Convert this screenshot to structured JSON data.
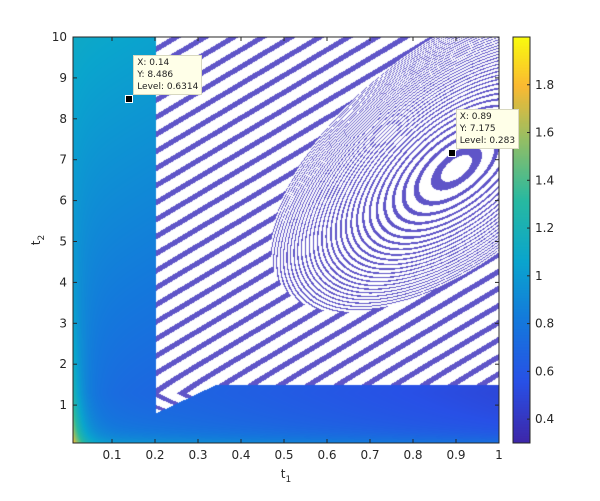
{
  "chart_data": {
    "type": "contour",
    "xlabel": "t",
    "xlabel_sub": "1",
    "ylabel": "t",
    "ylabel_sub": "2",
    "xlim": [
      0.01,
      1
    ],
    "ylim": [
      0.07,
      10
    ],
    "xticks": [
      "0.1",
      "0.2",
      "0.3",
      "0.4",
      "0.5",
      "0.6",
      "0.7",
      "0.8",
      "0.9",
      "1"
    ],
    "yticks": [
      "1",
      "2",
      "3",
      "4",
      "5",
      "6",
      "7",
      "8",
      "9",
      "10"
    ],
    "colorbar": {
      "clim": [
        0.3,
        2.0
      ],
      "ticks": [
        "0.4",
        "0.6",
        "0.8",
        "1",
        "1.2",
        "1.4",
        "1.6",
        "1.8"
      ],
      "colormap": "parula"
    },
    "datatips": [
      {
        "x": 0.14,
        "y": 8.486,
        "level": 0.6314,
        "lines": [
          "X: 0.14",
          "Y: 8.486",
          "Level: 0.6314"
        ]
      },
      {
        "x": 0.89,
        "y": 7.175,
        "level": 0.283,
        "lines": [
          "X: 0.89",
          "Y: 7.175",
          "Level: 0.283"
        ]
      }
    ]
  }
}
